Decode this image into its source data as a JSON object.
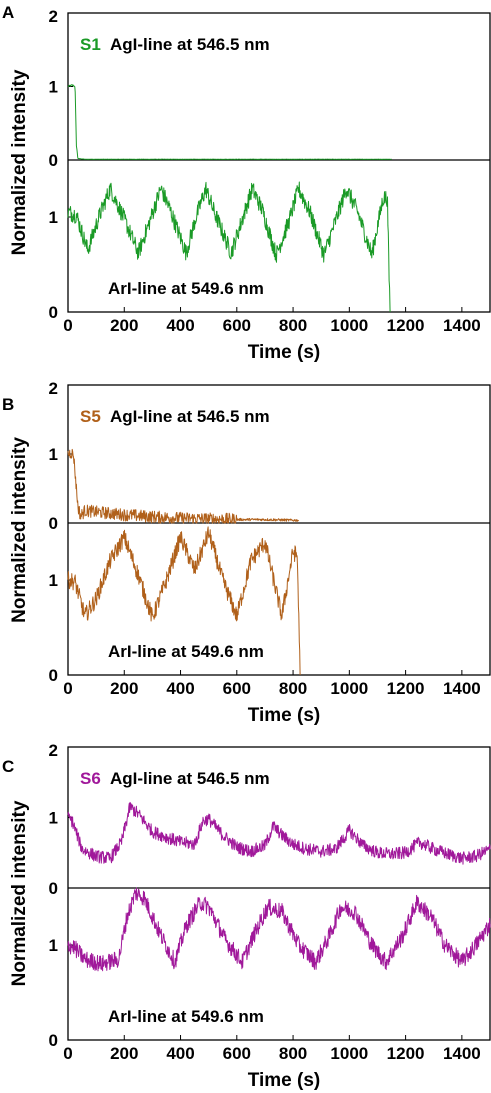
{
  "chart_data": [
    {
      "panel": "A",
      "type": "line",
      "xlabel": "Time (s)",
      "ylabel": "Normalized intensity",
      "xlim": [
        0,
        1500
      ],
      "x_ticks": [
        "0",
        "200",
        "400",
        "600",
        "800",
        "1000",
        "1200",
        "1400"
      ],
      "color": "#1a9a26",
      "subplots": [
        {
          "label_prefix": "S1",
          "annotation": "AgI-line at 546.5 nm",
          "y_ticks": [
            "0",
            "1",
            "2"
          ],
          "ylim": [
            0,
            2
          ],
          "series": {
            "x": [
              0,
              15,
              25,
              30,
              35,
              60,
              200,
              400,
              600,
              800,
              1000,
              1150
            ],
            "y": [
              1.0,
              1.02,
              1.0,
              0.2,
              0.02,
              0.01,
              0.01,
              0.01,
              0.01,
              0.01,
              0.01,
              0.01
            ]
          }
        },
        {
          "annotation": "ArI-line at 549.6 nm",
          "y_ticks": [
            "0",
            "1"
          ],
          "ylim": [
            0,
            1.6
          ],
          "series": {
            "x": [
              0,
              30,
              70,
              110,
              150,
              200,
              250,
              290,
              330,
              360,
              420,
              455,
              490,
              520,
              580,
              620,
              655,
              690,
              740,
              785,
              820,
              860,
              910,
              950,
              990,
              1030,
              1080,
              1120,
              1135,
              1142,
              1145
            ],
            "y": [
              1.05,
              1.02,
              0.65,
              1.0,
              1.3,
              0.98,
              0.62,
              0.95,
              1.3,
              1.1,
              0.62,
              1.0,
              1.3,
              1.05,
              0.62,
              0.98,
              1.3,
              1.08,
              0.6,
              0.95,
              1.3,
              1.05,
              0.6,
              0.95,
              1.3,
              1.05,
              0.6,
              1.2,
              1.2,
              0.3,
              0.0
            ]
          }
        }
      ]
    },
    {
      "panel": "B",
      "type": "line",
      "xlabel": "Time (s)",
      "ylabel": "Normalized intensity",
      "xlim": [
        0,
        1500
      ],
      "x_ticks": [
        "0",
        "200",
        "400",
        "600",
        "800",
        "1000",
        "1200",
        "1400"
      ],
      "color": "#b0601a",
      "subplots": [
        {
          "label_prefix": "S5",
          "annotation": "AgI-line at 546.5 nm",
          "y_ticks": [
            "0",
            "1",
            "2"
          ],
          "ylim": [
            0,
            2
          ],
          "series": {
            "x": [
              0,
              12,
              20,
              35,
              45,
              60,
              100,
              200,
              300,
              400,
              500,
              600,
              700,
              800,
              820
            ],
            "y": [
              1.0,
              1.02,
              0.98,
              0.25,
              0.1,
              0.18,
              0.16,
              0.12,
              0.09,
              0.07,
              0.06,
              0.05,
              0.05,
              0.04,
              0.04
            ]
          }
        },
        {
          "annotation": "ArI-line at 549.6 nm",
          "y_ticks": [
            "0",
            "1"
          ],
          "ylim": [
            0,
            1.6
          ],
          "series": {
            "x": [
              0,
              25,
              60,
              100,
              150,
              200,
              250,
              300,
              350,
              400,
              450,
              500,
              550,
              600,
              650,
              700,
              760,
              800,
              815,
              822,
              825
            ],
            "y": [
              1.0,
              0.98,
              0.62,
              0.8,
              1.2,
              1.45,
              1.05,
              0.6,
              1.0,
              1.45,
              1.1,
              1.5,
              1.0,
              0.62,
              1.2,
              1.4,
              0.62,
              1.3,
              1.25,
              0.4,
              0.0
            ]
          }
        }
      ]
    },
    {
      "panel": "C",
      "type": "line",
      "xlabel": "Time (s)",
      "ylabel": "Normalized intensity",
      "xlim": [
        0,
        1500
      ],
      "x_ticks": [
        "0",
        "200",
        "400",
        "600",
        "800",
        "1000",
        "1200",
        "1400"
      ],
      "color": "#a0189a",
      "subplots": [
        {
          "label_prefix": "S6",
          "annotation": "AgI-line at 546.5 nm",
          "y_ticks": [
            "0",
            "1",
            "2"
          ],
          "ylim": [
            0,
            2
          ],
          "series": {
            "x": [
              0,
              15,
              50,
              100,
              150,
              190,
              220,
              250,
              300,
              350,
              400,
              450,
              480,
              500,
              550,
              600,
              650,
              700,
              730,
              760,
              800,
              850,
              900,
              950,
              980,
              1000,
              1050,
              1100,
              1150,
              1200,
              1250,
              1300,
              1350,
              1400,
              1450,
              1500
            ],
            "y": [
              1.0,
              0.95,
              0.55,
              0.45,
              0.42,
              0.65,
              1.15,
              1.05,
              0.8,
              0.72,
              0.65,
              0.62,
              0.95,
              0.98,
              0.75,
              0.58,
              0.52,
              0.6,
              0.88,
              0.75,
              0.62,
              0.55,
              0.52,
              0.55,
              0.7,
              0.82,
              0.6,
              0.5,
              0.48,
              0.5,
              0.65,
              0.55,
              0.48,
              0.42,
              0.45,
              0.55
            ]
          }
        },
        {
          "annotation": "ArI-line at 549.6 nm",
          "y_ticks": [
            "0",
            "1"
          ],
          "ylim": [
            0,
            1.6
          ],
          "series": {
            "x": [
              0,
              20,
              60,
              120,
              180,
              210,
              240,
              270,
              330,
              380,
              420,
              470,
              500,
              560,
              620,
              660,
              710,
              760,
              820,
              880,
              930,
              970,
              1020,
              1080,
              1130,
              1190,
              1240,
              1290,
              1340,
              1400,
              1450,
              1500
            ],
            "y": [
              1.0,
              0.98,
              0.85,
              0.8,
              0.85,
              1.3,
              1.55,
              1.5,
              1.1,
              0.82,
              1.2,
              1.45,
              1.4,
              1.05,
              0.82,
              1.1,
              1.4,
              1.35,
              1.0,
              0.82,
              1.1,
              1.4,
              1.35,
              1.0,
              0.82,
              1.1,
              1.45,
              1.3,
              1.0,
              0.82,
              1.0,
              1.22
            ]
          }
        }
      ]
    }
  ]
}
